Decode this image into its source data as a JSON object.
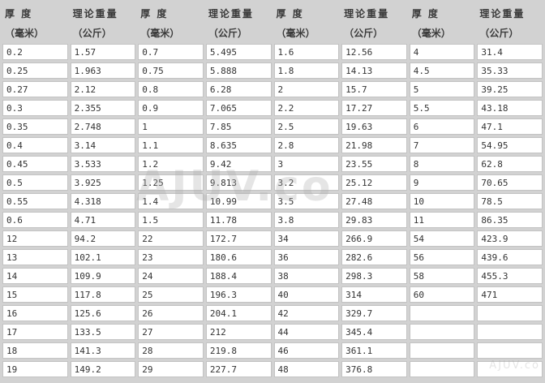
{
  "table": {
    "header": {
      "pairs_count": 4,
      "thickness_label": "厚 度",
      "thickness_unit": "（毫米）",
      "weight_label": "理论重量",
      "weight_unit": "（公斤）"
    },
    "rows": [
      [
        "0.2",
        "1.57",
        "0.7",
        "5.495",
        "1.6",
        "12.56",
        "4",
        "31.4"
      ],
      [
        "0.25",
        "1.963",
        "0.75",
        "5.888",
        "1.8",
        "14.13",
        "4.5",
        "35.33"
      ],
      [
        "0.27",
        "2.12",
        "0.8",
        "6.28",
        "2",
        "15.7",
        "5",
        "39.25"
      ],
      [
        "0.3",
        "2.355",
        "0.9",
        "7.065",
        "2.2",
        "17.27",
        "5.5",
        "43.18"
      ],
      [
        "0.35",
        "2.748",
        "1",
        "7.85",
        "2.5",
        "19.63",
        "6",
        "47.1"
      ],
      [
        "0.4",
        "3.14",
        "1.1",
        "8.635",
        "2.8",
        "21.98",
        "7",
        "54.95"
      ],
      [
        "0.45",
        "3.533",
        "1.2",
        "9.42",
        "3",
        "23.55",
        "8",
        "62.8"
      ],
      [
        "0.5",
        "3.925",
        "1.25",
        "9.813",
        "3.2",
        "25.12",
        "9",
        "70.65"
      ],
      [
        "0.55",
        "4.318",
        "1.4",
        "10.99",
        "3.5",
        "27.48",
        "10",
        "78.5"
      ],
      [
        "0.6",
        "4.71",
        "1.5",
        "11.78",
        "3.8",
        "29.83",
        "11",
        "86.35"
      ],
      [
        "12",
        "94.2",
        "22",
        "172.7",
        "34",
        "266.9",
        "54",
        "423.9"
      ],
      [
        "13",
        "102.1",
        "23",
        "180.6",
        "36",
        "282.6",
        "56",
        "439.6"
      ],
      [
        "14",
        "109.9",
        "24",
        "188.4",
        "38",
        "298.3",
        "58",
        "455.3"
      ],
      [
        "15",
        "117.8",
        "25",
        "196.3",
        "40",
        "314",
        "60",
        "471"
      ],
      [
        "16",
        "125.6",
        "26",
        "204.1",
        "42",
        "329.7",
        "",
        ""
      ],
      [
        "17",
        "133.5",
        "27",
        "212",
        "44",
        "345.4",
        "",
        ""
      ],
      [
        "18",
        "141.3",
        "28",
        "219.8",
        "46",
        "361.1",
        "",
        ""
      ],
      [
        "19",
        "149.2",
        "29",
        "227.7",
        "48",
        "376.8",
        "",
        ""
      ]
    ]
  },
  "watermark": {
    "text": "AJUV.co",
    "small_text": "AJUV.co"
  },
  "colors": {
    "page_background": "#d2d2d2",
    "cell_background": "#ffffff",
    "cell_border": "#c3c3c3",
    "text": "#333333"
  }
}
